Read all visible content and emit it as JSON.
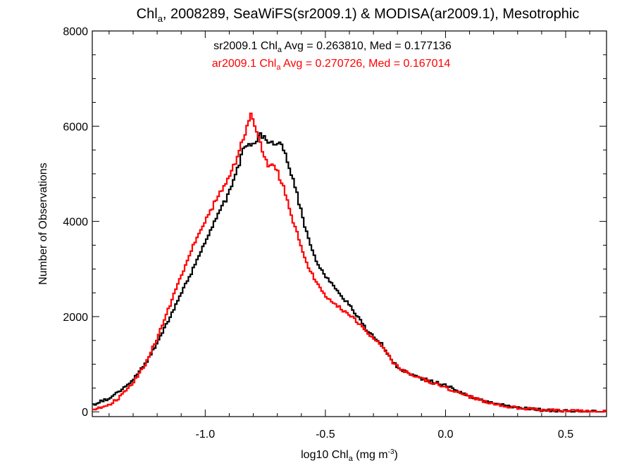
{
  "chart_data": {
    "type": "line",
    "title": {
      "pre": "Chl",
      "sub": "a",
      "post": ", 2008289, SeaWiFS(sr2009.1) & MODISA(ar2009.1), Mesotrophic"
    },
    "xlabel": {
      "pre": "log10 Chl",
      "sub": "a",
      "mid": " (mg m",
      "sup": "-3",
      "post": ")"
    },
    "ylabel": "Number of Observations",
    "xlim": [
      -1.47,
      0.67
    ],
    "ylim": [
      -100,
      8000
    ],
    "xticks": [
      -1.0,
      -0.5,
      0.0,
      0.5
    ],
    "xtick_labels": [
      "-1.0",
      "-0.5",
      "0.0",
      "0.5"
    ],
    "yticks": [
      0,
      2000,
      4000,
      6000,
      8000
    ],
    "ytick_labels": [
      "0",
      "2000",
      "4000",
      "6000",
      "8000"
    ],
    "grid": false,
    "legend_position": "top-center",
    "series": [
      {
        "name": "sr2009.1",
        "annotation": {
          "pre": "sr2009.1 Chl",
          "sub": "a",
          "post": " Avg = 0.263810, Med = 0.177136"
        },
        "color": "#000000",
        "points": [
          [
            -1.47,
            150
          ],
          [
            -1.4,
            280
          ],
          [
            -1.35,
            450
          ],
          [
            -1.3,
            680
          ],
          [
            -1.25,
            1000
          ],
          [
            -1.2,
            1450
          ],
          [
            -1.15,
            1950
          ],
          [
            -1.1,
            2500
          ],
          [
            -1.05,
            3000
          ],
          [
            -1.0,
            3550
          ],
          [
            -0.95,
            4100
          ],
          [
            -0.92,
            4400
          ],
          [
            -0.9,
            4600
          ],
          [
            -0.87,
            5000
          ],
          [
            -0.85,
            5400
          ],
          [
            -0.83,
            5600
          ],
          [
            -0.81,
            5600
          ],
          [
            -0.79,
            5700
          ],
          [
            -0.77,
            5850
          ],
          [
            -0.75,
            5700
          ],
          [
            -0.73,
            5700
          ],
          [
            -0.7,
            5650
          ],
          [
            -0.68,
            5550
          ],
          [
            -0.66,
            5300
          ],
          [
            -0.64,
            4950
          ],
          [
            -0.62,
            4600
          ],
          [
            -0.6,
            4200
          ],
          [
            -0.58,
            3800
          ],
          [
            -0.56,
            3500
          ],
          [
            -0.54,
            3200
          ],
          [
            -0.52,
            3000
          ],
          [
            -0.5,
            2850
          ],
          [
            -0.48,
            2750
          ],
          [
            -0.46,
            2600
          ],
          [
            -0.44,
            2450
          ],
          [
            -0.42,
            2350
          ],
          [
            -0.4,
            2250
          ],
          [
            -0.38,
            2100
          ],
          [
            -0.35,
            1900
          ],
          [
            -0.32,
            1650
          ],
          [
            -0.3,
            1600
          ],
          [
            -0.27,
            1450
          ],
          [
            -0.25,
            1300
          ],
          [
            -0.22,
            1050
          ],
          [
            -0.2,
            950
          ],
          [
            -0.15,
            780
          ],
          [
            -0.1,
            700
          ],
          [
            -0.05,
            630
          ],
          [
            0.0,
            560
          ],
          [
            0.05,
            440
          ],
          [
            0.1,
            330
          ],
          [
            0.15,
            250
          ],
          [
            0.2,
            180
          ],
          [
            0.25,
            120
          ],
          [
            0.3,
            80
          ],
          [
            0.4,
            40
          ],
          [
            0.5,
            15
          ],
          [
            0.55,
            5
          ],
          [
            0.67,
            0
          ]
        ]
      },
      {
        "name": "ar2009.1",
        "annotation": {
          "pre": "ar2009.1 Chl",
          "sub": "a",
          "post": " Avg = 0.270726, Med = 0.167014"
        },
        "color": "#ff0000",
        "points": [
          [
            -1.47,
            50
          ],
          [
            -1.4,
            150
          ],
          [
            -1.35,
            330
          ],
          [
            -1.3,
            600
          ],
          [
            -1.25,
            1000
          ],
          [
            -1.2,
            1550
          ],
          [
            -1.15,
            2200
          ],
          [
            -1.1,
            2850
          ],
          [
            -1.05,
            3500
          ],
          [
            -1.0,
            4000
          ],
          [
            -0.95,
            4500
          ],
          [
            -0.9,
            4900
          ],
          [
            -0.87,
            5300
          ],
          [
            -0.85,
            5600
          ],
          [
            -0.83,
            5900
          ],
          [
            -0.82,
            6050
          ],
          [
            -0.81,
            6200
          ],
          [
            -0.8,
            6100
          ],
          [
            -0.78,
            5850
          ],
          [
            -0.76,
            5400
          ],
          [
            -0.74,
            5200
          ],
          [
            -0.72,
            5150
          ],
          [
            -0.7,
            5050
          ],
          [
            -0.68,
            4800
          ],
          [
            -0.66,
            4450
          ],
          [
            -0.64,
            4100
          ],
          [
            -0.62,
            3800
          ],
          [
            -0.6,
            3450
          ],
          [
            -0.58,
            3150
          ],
          [
            -0.56,
            2950
          ],
          [
            -0.54,
            2750
          ],
          [
            -0.52,
            2600
          ],
          [
            -0.5,
            2450
          ],
          [
            -0.48,
            2350
          ],
          [
            -0.46,
            2250
          ],
          [
            -0.44,
            2200
          ],
          [
            -0.42,
            2100
          ],
          [
            -0.4,
            2050
          ],
          [
            -0.38,
            1950
          ],
          [
            -0.35,
            1800
          ],
          [
            -0.32,
            1650
          ],
          [
            -0.3,
            1550
          ],
          [
            -0.27,
            1400
          ],
          [
            -0.25,
            1300
          ],
          [
            -0.22,
            1050
          ],
          [
            -0.2,
            950
          ],
          [
            -0.15,
            800
          ],
          [
            -0.1,
            700
          ],
          [
            -0.05,
            600
          ],
          [
            0.0,
            510
          ],
          [
            0.05,
            420
          ],
          [
            0.1,
            320
          ],
          [
            0.15,
            240
          ],
          [
            0.2,
            170
          ],
          [
            0.25,
            110
          ],
          [
            0.3,
            80
          ],
          [
            0.4,
            40
          ],
          [
            0.5,
            20
          ],
          [
            0.6,
            5
          ],
          [
            0.67,
            0
          ]
        ]
      }
    ]
  }
}
